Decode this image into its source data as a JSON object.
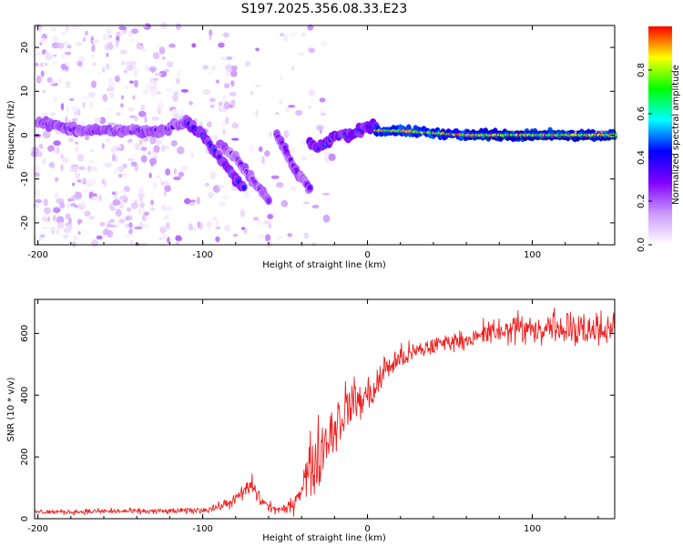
{
  "title": "S197.2025.356.08.33.E23",
  "chart_data": [
    {
      "type": "heatmap",
      "name": "spectrogram",
      "xlabel": "Height of straight line (km)",
      "ylabel": "Frequency (Hz)",
      "xlim": [
        -202,
        150
      ],
      "ylim": [
        -25,
        25
      ],
      "xticks": [
        -200,
        -100,
        0,
        100
      ],
      "yticks": [
        -20,
        -10,
        0,
        10,
        20
      ],
      "colorbar": {
        "label": "Normalized spectral amplitude",
        "range": [
          0,
          1
        ],
        "ticks": [
          "0.0",
          "0.2",
          "0.4",
          "0.6",
          "0.8"
        ],
        "colors": [
          "#ffffff",
          "#cc99ff",
          "#8000ff",
          "#0000ff",
          "#00ffff",
          "#00ff00",
          "#ffff00",
          "#ff0000"
        ]
      },
      "ridges": [
        {
          "x": [
            -200,
            -175,
            -150,
            -125,
            -110
          ],
          "freq": [
            3,
            1,
            1,
            1,
            3
          ],
          "amp": 0.35
        },
        {
          "x": [
            -110,
            -100,
            -90,
            -80,
            -75
          ],
          "freq": [
            3,
            0,
            -5,
            -10,
            -12
          ],
          "amp": 0.45
        },
        {
          "x": [
            -90,
            -80,
            -70,
            -60
          ],
          "freq": [
            -2,
            -5,
            -10,
            -15
          ],
          "amp": 0.3
        },
        {
          "x": [
            -55,
            -50,
            -45,
            -40,
            -35
          ],
          "freq": [
            0,
            -3,
            -7,
            -10,
            -12
          ],
          "amp": 0.3
        },
        {
          "x": [
            -35,
            -30,
            -25,
            -20,
            -10,
            0,
            5
          ],
          "freq": [
            -2,
            -3,
            -2,
            0,
            0,
            2,
            2
          ],
          "amp": 0.5
        },
        {
          "x": [
            5,
            20,
            40,
            60,
            80,
            100,
            120,
            150
          ],
          "freq": [
            1,
            1,
            0.5,
            0,
            0,
            0,
            0,
            0
          ],
          "amp": 0.9
        }
      ]
    },
    {
      "type": "line",
      "name": "snr",
      "xlabel": "Height of straight line (km)",
      "ylabel": "SNR (10 * v/v)",
      "xlim": [
        -202,
        150
      ],
      "ylim": [
        0,
        710
      ],
      "xticks": [
        -200,
        -100,
        0,
        100
      ],
      "yticks": [
        0,
        200,
        400,
        600
      ],
      "series": [
        {
          "name": "SNR",
          "color": "#ee2222",
          "x": [
            -202,
            -180,
            -160,
            -140,
            -120,
            -100,
            -90,
            -80,
            -75,
            -70,
            -65,
            -60,
            -55,
            -50,
            -45,
            -40,
            -35,
            -30,
            -25,
            -20,
            -15,
            -10,
            -5,
            0,
            5,
            10,
            15,
            20,
            30,
            40,
            50,
            60,
            70,
            80,
            90,
            100,
            110,
            120,
            130,
            140,
            150
          ],
          "values": [
            22,
            22,
            24,
            24,
            24,
            28,
            38,
            62,
            88,
            108,
            62,
            38,
            30,
            28,
            48,
            110,
            160,
            200,
            260,
            300,
            340,
            380,
            380,
            400,
            420,
            480,
            500,
            520,
            540,
            560,
            575,
            580,
            590,
            595,
            600,
            600,
            600,
            600,
            600,
            600,
            600
          ],
          "noise": [
            8,
            8,
            9,
            9,
            9,
            10,
            14,
            20,
            28,
            32,
            28,
            18,
            14,
            14,
            30,
            60,
            95,
            110,
            110,
            100,
            85,
            75,
            70,
            60,
            55,
            50,
            45,
            40,
            35,
            30,
            28,
            26,
            28,
            30,
            36,
            34,
            34,
            36,
            36,
            38,
            40
          ]
        }
      ]
    }
  ]
}
